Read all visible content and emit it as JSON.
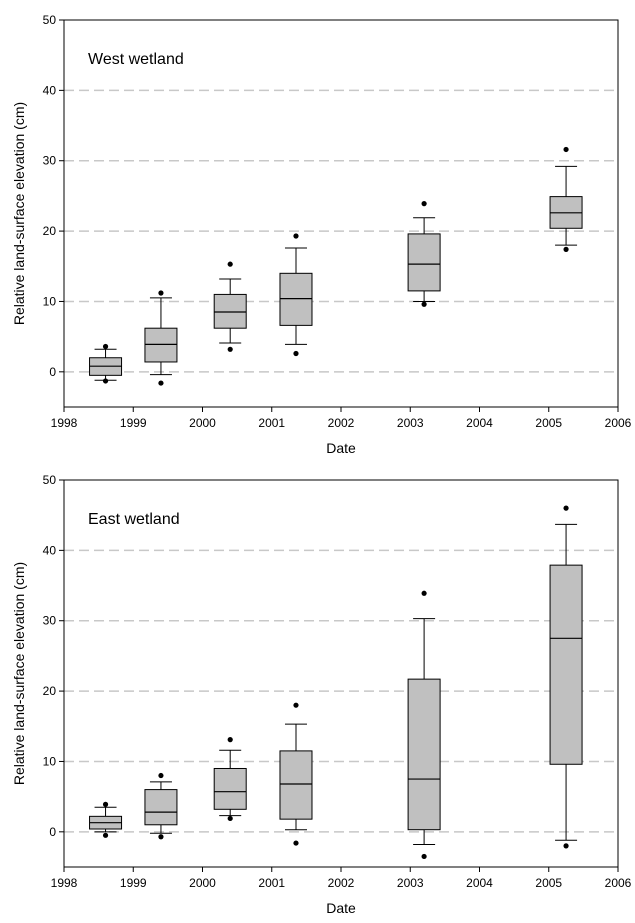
{
  "chart_data": [
    {
      "type": "box",
      "panel_label": "West wetland",
      "xlabel": "Date",
      "ylabel": "Relative land-surface elevation (cm)",
      "xlim": [
        1998,
        2006
      ],
      "ylim": [
        -5,
        50
      ],
      "x_ticks": [
        "1998",
        "1999",
        "2000",
        "2001",
        "2002",
        "2003",
        "2004",
        "2005",
        "2006"
      ],
      "y_ticks": [
        "0",
        "10",
        "20",
        "30",
        "40",
        "50"
      ],
      "grid": "horizontal dashed at y ticks",
      "colors": {
        "box_fill": "#c0c0c0",
        "grid": "#c8c8c8"
      },
      "boxes": [
        {
          "x": 1998.6,
          "whisker_low": -1.2,
          "q1": -0.5,
          "median": 0.8,
          "q3": 2.0,
          "whisker_high": 3.2,
          "outliers": [
            -1.3,
            3.6
          ]
        },
        {
          "x": 1999.4,
          "whisker_low": -0.4,
          "q1": 1.4,
          "median": 3.9,
          "q3": 6.2,
          "whisker_high": 10.5,
          "outliers": [
            -1.6,
            11.2
          ]
        },
        {
          "x": 2000.4,
          "whisker_low": 4.1,
          "q1": 6.2,
          "median": 8.5,
          "q3": 11.0,
          "whisker_high": 13.2,
          "outliers": [
            3.2,
            15.3
          ]
        },
        {
          "x": 2001.35,
          "whisker_low": 3.9,
          "q1": 6.6,
          "median": 10.4,
          "q3": 14.0,
          "whisker_high": 17.6,
          "outliers": [
            2.6,
            19.3
          ]
        },
        {
          "x": 2003.2,
          "whisker_low": 10.0,
          "q1": 11.5,
          "median": 15.3,
          "q3": 19.6,
          "whisker_high": 21.9,
          "outliers": [
            9.6,
            23.9
          ]
        },
        {
          "x": 2005.25,
          "whisker_low": 18.0,
          "q1": 20.4,
          "median": 22.6,
          "q3": 24.9,
          "whisker_high": 29.2,
          "outliers": [
            17.4,
            31.6
          ]
        }
      ]
    },
    {
      "type": "box",
      "panel_label": "East wetland",
      "xlabel": "Date",
      "ylabel": "Relative land-surface elevation (cm)",
      "xlim": [
        1998,
        2006
      ],
      "ylim": [
        -5,
        50
      ],
      "x_ticks": [
        "1998",
        "1999",
        "2000",
        "2001",
        "2002",
        "2003",
        "2004",
        "2005",
        "2006"
      ],
      "y_ticks": [
        "0",
        "10",
        "20",
        "30",
        "40",
        "50"
      ],
      "grid": "horizontal dashed at y ticks",
      "colors": {
        "box_fill": "#c0c0c0",
        "grid": "#c8c8c8"
      },
      "boxes": [
        {
          "x": 1998.6,
          "whisker_low": 0.0,
          "q1": 0.4,
          "median": 1.3,
          "q3": 2.2,
          "whisker_high": 3.5,
          "outliers": [
            -0.5,
            3.9
          ]
        },
        {
          "x": 1999.4,
          "whisker_low": -0.2,
          "q1": 1.0,
          "median": 2.8,
          "q3": 6.0,
          "whisker_high": 7.1,
          "outliers": [
            -0.7,
            8.0
          ]
        },
        {
          "x": 2000.4,
          "whisker_low": 2.3,
          "q1": 3.2,
          "median": 5.7,
          "q3": 9.0,
          "whisker_high": 11.6,
          "outliers": [
            1.9,
            13.1
          ]
        },
        {
          "x": 2001.35,
          "whisker_low": 0.3,
          "q1": 1.8,
          "median": 6.8,
          "q3": 11.5,
          "whisker_high": 15.3,
          "outliers": [
            -1.6,
            18.0
          ]
        },
        {
          "x": 2003.2,
          "whisker_low": -1.8,
          "q1": 0.3,
          "median": 7.5,
          "q3": 21.7,
          "whisker_high": 30.3,
          "outliers": [
            -3.5,
            33.9
          ]
        },
        {
          "x": 2005.25,
          "whisker_low": -1.2,
          "q1": 9.6,
          "median": 27.5,
          "q3": 37.9,
          "whisker_high": 43.7,
          "outliers": [
            -2.0,
            46.0
          ]
        }
      ]
    }
  ]
}
